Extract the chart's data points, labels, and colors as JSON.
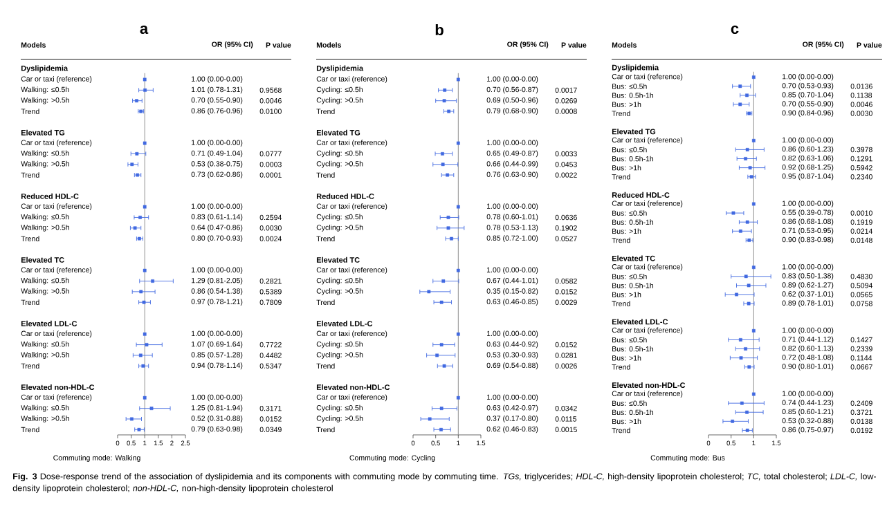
{
  "chart_data": [
    {
      "type": "scatter",
      "orientation": "horizontal",
      "title": "a",
      "xlabel": "Commuting mode: Walking",
      "color": "#4169e1",
      "marker": "square",
      "xlim": [
        0,
        2.5
      ],
      "xticks": [
        0,
        0.5,
        1,
        1.5,
        2,
        2.5
      ],
      "ref_lines": [
        {
          "axis": "x",
          "value": 1
        }
      ],
      "categories": [
        "Dyslipidemia",
        "Car or taxi (reference)",
        "Walking: ≤0.5h",
        "Walking: >0.5h",
        "Trend",
        "Elevated TG",
        "Car or taxi (reference)",
        "Walking: ≤0.5h",
        "Walking: >0.5h",
        "Trend",
        "Reduced HDL-C",
        "Car or taxi (reference)",
        "Walking: ≤0.5h",
        "Walking: >0.5h",
        "Trend",
        "Elevated TC",
        "Car or taxi (reference)",
        "Walking: ≤0.5h",
        "Walking: >0.5h",
        "Trend",
        "Elevated LDL-C",
        "Car or taxi (reference)",
        "Walking: ≤0.5h",
        "Walking: >0.5h",
        "Trend",
        "Elevated non-HDL-C",
        "Car or taxi (reference)",
        "Walking: ≤0.5h",
        "Walking: >0.5h",
        "Trend"
      ],
      "values": [
        null,
        1.0,
        1.01,
        0.7,
        0.86,
        null,
        1.0,
        0.71,
        0.53,
        0.73,
        null,
        1.0,
        0.83,
        0.64,
        0.8,
        null,
        1.0,
        1.29,
        0.86,
        0.97,
        null,
        1.0,
        1.07,
        0.85,
        0.94,
        null,
        1.0,
        1.25,
        0.52,
        0.79
      ],
      "errors": [
        null,
        null,
        [
          0.78,
          1.31
        ],
        [
          0.55,
          0.9
        ],
        [
          0.76,
          0.96
        ],
        null,
        null,
        [
          0.49,
          1.04
        ],
        [
          0.38,
          0.75
        ],
        [
          0.62,
          0.86
        ],
        null,
        null,
        [
          0.61,
          1.14
        ],
        [
          0.47,
          0.86
        ],
        [
          0.7,
          0.93
        ],
        null,
        null,
        [
          0.81,
          2.05
        ],
        [
          0.54,
          1.38
        ],
        [
          0.78,
          1.21
        ],
        null,
        null,
        [
          0.69,
          1.64
        ],
        [
          0.57,
          1.28
        ],
        [
          0.78,
          1.14
        ],
        null,
        null,
        [
          0.81,
          1.94
        ],
        [
          0.31,
          0.88
        ],
        [
          0.63,
          0.98
        ]
      ],
      "value_labels": [
        null,
        "1.00 (0.00-0.00)",
        "1.01 (0.78-1.31)",
        "0.70 (0.55-0.90)",
        "0.86 (0.76-0.96)",
        null,
        "1.00 (0.00-0.00)",
        "0.71 (0.49-1.04)",
        "0.53 (0.38-0.75)",
        "0.73 (0.62-0.86)",
        null,
        "1.00 (0.00-0.00)",
        "0.83 (0.61-1.14)",
        "0.64 (0.47-0.86)",
        "0.80 (0.70-0.93)",
        null,
        "1.00 (0.00-0.00)",
        "1.29 (0.81-2.05)",
        "0.86 (0.54-1.38)",
        "0.97 (0.78-1.21)",
        null,
        "1.00 (0.00-0.00)",
        "1.07 (0.69-1.64)",
        "0.85 (0.57-1.28)",
        "0.94 (0.78-1.14)",
        null,
        "1.00 (0.00-0.00)",
        "1.25 (0.81-1.94)",
        "0.52 (0.31-0.88)",
        "0.79 (0.63-0.98)"
      ],
      "annotations": [
        "Models",
        "OR (95% CI)",
        "P value",
        "0.9568",
        "0.0046",
        "0.0100",
        "0.0777",
        "0.0003",
        "0.0001",
        "0.2594",
        "0.0030",
        "0.0024",
        "0.2821",
        "0.5389",
        "0.7809",
        "0.7722",
        "0.4482",
        "0.5347",
        "0.3171",
        "0.0152",
        "0.0349",
        "**Fig. 3** Dose-response trend of the association of dyslipidemia and its components with commuting mode by commuting time. *TGs,* triglycerides; *HDL-C,* high-density lipoprotein cholesterol; *TC,* total cholesterol; *LDL-C,* low-density lipoprotein cholesterol; *non-HDL-C,* non-high-density lipoprotein cholesterol"
      ]
    },
    {
      "type": "scatter",
      "orientation": "horizontal",
      "title": "b",
      "xlabel": "Commuting mode: Cycling",
      "color": "#4169e1",
      "marker": "square",
      "xlim": [
        0,
        1.5
      ],
      "xticks": [
        0,
        0.5,
        1,
        1.5
      ],
      "ref_lines": [
        {
          "axis": "x",
          "value": 1
        }
      ],
      "categories": [
        "Dyslipidemia",
        "Car or taxi (reference)",
        "Cycling: ≤0.5h",
        "Cycling: >0.5h",
        "Trend",
        "Elevated TG",
        "Car or taxi (reference)",
        "Cycling: ≤0.5h",
        "Cycling: >0.5h",
        "Trend",
        "Reduced HDL-C",
        "Car or taxi (reference)",
        "Cycling: ≤0.5h",
        "Cycling: >0.5h",
        "Trend",
        "Elevated TC",
        "Car or taxi (reference)",
        "Cycling: ≤0.5h",
        "Cycling: >0.5h",
        "Trend",
        "Elevated LDL-C",
        "Car or taxi (reference)",
        "Cycling: ≤0.5h",
        "Cycling: >0.5h",
        "Trend",
        "Elevated non-HDL-C",
        "Car or taxi (reference)",
        "Cycling: ≤0.5h",
        "Cycling: >0.5h",
        "Trend"
      ],
      "values": [
        null,
        1.0,
        0.7,
        0.69,
        0.79,
        null,
        1.0,
        0.65,
        0.66,
        0.76,
        null,
        1.0,
        0.78,
        0.78,
        0.85,
        null,
        1.0,
        0.67,
        0.35,
        0.63,
        null,
        1.0,
        0.63,
        0.53,
        0.69,
        null,
        1.0,
        0.63,
        0.37,
        0.62
      ],
      "errors": [
        null,
        null,
        [
          0.56,
          0.87
        ],
        [
          0.5,
          0.96
        ],
        [
          0.68,
          0.9
        ],
        null,
        null,
        [
          0.49,
          0.87
        ],
        [
          0.44,
          0.99
        ],
        [
          0.63,
          0.9
        ],
        null,
        null,
        [
          0.6,
          1.01
        ],
        [
          0.53,
          1.13
        ],
        [
          0.72,
          1.0
        ],
        null,
        null,
        [
          0.44,
          1.01
        ],
        [
          0.15,
          0.82
        ],
        [
          0.46,
          0.85
        ],
        null,
        null,
        [
          0.44,
          0.92
        ],
        [
          0.3,
          0.93
        ],
        [
          0.54,
          0.88
        ],
        null,
        null,
        [
          0.42,
          0.97
        ],
        [
          0.17,
          0.8
        ],
        [
          0.46,
          0.83
        ]
      ],
      "value_labels": [
        null,
        "1.00 (0.00-0.00)",
        "0.70 (0.56-0.87)",
        "0.69 (0.50-0.96)",
        "0.79 (0.68-0.90)",
        null,
        "1.00 (0.00-0.00)",
        "0.65 (0.49-0.87)",
        "0.66 (0.44-0.99)",
        "0.76 (0.63-0.90)",
        null,
        "1.00 (0.00-0.00)",
        "0.78 (0.60-1.01)",
        "0.78 (0.53-1.13)",
        "0.85 (0.72-1.00)",
        null,
        "1.00 (0.00-0.00)",
        "0.67 (0.44-1.01)",
        "0.35 (0.15-0.82)",
        "0.63 (0.46-0.85)",
        null,
        "1.00 (0.00-0.00)",
        "0.63 (0.44-0.92)",
        "0.53 (0.30-0.93)",
        "0.69 (0.54-0.88)",
        null,
        "1.00 (0.00-0.00)",
        "0.63 (0.42-0.97)",
        "0.37 (0.17-0.80)",
        "0.62 (0.46-0.83)"
      ],
      "annotations": [
        "Models",
        "OR (95% CI)",
        "P value",
        "0.0017",
        "0.0269",
        "0.0008",
        "0.0033",
        "0.0453",
        "0.0022",
        "0.0636",
        "0.1902",
        "0.0527",
        "0.0582",
        "0.0152",
        "0.0029",
        "0.0152",
        "0.0281",
        "0.0026",
        "0.0342",
        "0.0115",
        "0.0015"
      ]
    },
    {
      "type": "scatter",
      "orientation": "horizontal",
      "title": "c",
      "xlabel": "Commuting mode: Bus",
      "color": "#4169e1",
      "marker": "square",
      "xlim": [
        0,
        1.5
      ],
      "xticks": [
        0,
        0.5,
        1,
        1.5
      ],
      "ref_lines": [
        {
          "axis": "x",
          "value": 1
        }
      ],
      "categories": [
        "Dyslipidemia",
        "Car or taxi (reference)",
        "Bus: ≤0.5h",
        "Bus: 0.5h-1h",
        "Bus: >1h",
        "Trend",
        "Elevated TG",
        "Car or taxi (reference)",
        "Bus: ≤0.5h",
        "Bus: 0.5h-1h",
        "Bus: >1h",
        "Trend",
        "Reduced HDL-C",
        "Car or taxi (reference)",
        "Bus: ≤0.5h",
        "Bus: 0.5h-1h",
        "Bus: >1h",
        "Trend",
        "Elevated TC",
        "Car or taxi (reference)",
        "Bus: ≤0.5h",
        "Bus: 0.5h-1h",
        "Bus: >1h",
        "Trend",
        "Elevated LDL-C",
        "Car or taxi (reference)",
        "Bus: ≤0.5h",
        "Bus: 0.5h-1h",
        "Bus: >1h",
        "Trend",
        "Elevated non-HDL-C",
        "Car or taxi (reference)",
        "Bus: ≤0.5h",
        "Bus: 0.5h-1h",
        "Bus: >1h",
        "Trend"
      ],
      "values": [
        null,
        1.0,
        0.7,
        0.85,
        0.7,
        0.9,
        null,
        1.0,
        0.86,
        0.82,
        0.92,
        0.95,
        null,
        1.0,
        0.55,
        0.86,
        0.71,
        0.9,
        null,
        1.0,
        0.83,
        0.89,
        0.62,
        0.89,
        null,
        1.0,
        0.71,
        0.82,
        0.72,
        0.9,
        null,
        1.0,
        0.74,
        0.85,
        0.53,
        0.86
      ],
      "errors": [
        null,
        null,
        [
          0.53,
          0.93
        ],
        [
          0.7,
          1.04
        ],
        [
          0.55,
          0.9
        ],
        [
          0.84,
          0.96
        ],
        null,
        null,
        [
          0.6,
          1.23
        ],
        [
          0.63,
          1.06
        ],
        [
          0.68,
          1.25
        ],
        [
          0.87,
          1.04
        ],
        null,
        null,
        [
          0.39,
          0.78
        ],
        [
          0.68,
          1.08
        ],
        [
          0.53,
          0.95
        ],
        [
          0.83,
          0.98
        ],
        null,
        null,
        [
          0.5,
          1.38
        ],
        [
          0.62,
          1.27
        ],
        [
          0.37,
          1.01
        ],
        [
          0.78,
          1.01
        ],
        null,
        null,
        [
          0.44,
          1.12
        ],
        [
          0.6,
          1.13
        ],
        [
          0.48,
          1.08
        ],
        [
          0.8,
          1.01
        ],
        null,
        null,
        [
          0.44,
          1.23
        ],
        [
          0.6,
          1.21
        ],
        [
          0.32,
          0.88
        ],
        [
          0.75,
          0.97
        ]
      ],
      "value_labels": [
        null,
        "1.00 (0.00-0.00)",
        "0.70 (0.53-0.93)",
        "0.85 (0.70-1.04)",
        "0.70 (0.55-0.90)",
        "0.90 (0.84-0.96)",
        null,
        "1.00 (0.00-0.00)",
        "0.86 (0.60-1.23)",
        "0.82 (0.63-1.06)",
        "0.92 (0.68-1.25)",
        "0.95 (0.87-1.04)",
        null,
        "1.00 (0.00-0.00)",
        "0.55 (0.39-0.78)",
        "0.86 (0.68-1.08)",
        "0.71 (0.53-0.95)",
        "0.90 (0.83-0.98)",
        null,
        "1.00 (0.00-0.00)",
        "0.83 (0.50-1.38)",
        "0.89 (0.62-1.27)",
        "0.62 (0.37-1.01)",
        "0.89 (0.78-1.01)",
        null,
        "1.00 (0.00-0.00)",
        "0.71 (0.44-1.12)",
        "0.82 (0.60-1.13)",
        "0.72 (0.48-1.08)",
        "0.90 (0.80-1.01)",
        null,
        "1.00 (0.00-0.00)",
        "0.74 (0.44-1.23)",
        "0.85 (0.60-1.21)",
        "0.53 (0.32-0.88)",
        "0.86 (0.75-0.97)"
      ],
      "annotations": [
        "Models",
        "OR (95% CI)",
        "P value",
        "0.0136",
        "0.1138",
        "0.0046",
        "0.0030",
        "0.3978",
        "0.1291",
        "0.5942",
        "0.2340",
        "0.0010",
        "0.1919",
        "0.0214",
        "0.0148",
        "0.4830",
        "0.5094",
        "0.0565",
        "0.0758",
        "0.1427",
        "0.2339",
        "0.1144",
        "0.0667",
        "0.2409",
        "0.3721",
        "0.0138",
        "0.0192"
      ]
    }
  ]
}
